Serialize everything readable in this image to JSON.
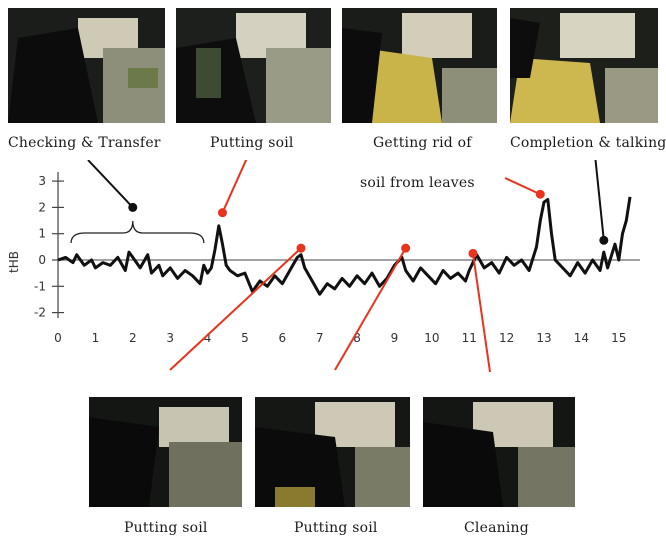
{
  "top_captions": [
    "Checking & Transfer",
    "Putting soil",
    "Getting rid of",
    "Completion & talking"
  ],
  "top_caption_line2": "soil from leaves",
  "bottom_captions": [
    "Putting soil",
    "Putting soil",
    "Cleaning"
  ],
  "chart_data": {
    "type": "line",
    "ylabel": "tHB",
    "xlabel": "",
    "xlim": [
      0,
      15.3
    ],
    "ylim": [
      -2,
      3
    ],
    "xticks": [
      "0",
      "1",
      "2",
      "3",
      "4",
      "5",
      "6",
      "7",
      "8",
      "9",
      "10",
      "11",
      "12",
      "13",
      "14",
      "15"
    ],
    "yticks": [
      "3",
      "2",
      "1",
      "0",
      "-1",
      "-2"
    ],
    "x": [
      0,
      0.2,
      0.4,
      0.5,
      0.7,
      0.9,
      1.0,
      1.2,
      1.4,
      1.6,
      1.8,
      1.9,
      2.0,
      2.2,
      2.4,
      2.5,
      2.7,
      2.8,
      3.0,
      3.2,
      3.4,
      3.6,
      3.8,
      3.9,
      4.0,
      4.1,
      4.2,
      4.3,
      4.4,
      4.5,
      4.6,
      4.8,
      5.0,
      5.2,
      5.4,
      5.6,
      5.8,
      6.0,
      6.2,
      6.4,
      6.5,
      6.6,
      6.8,
      7.0,
      7.2,
      7.4,
      7.6,
      7.8,
      8.0,
      8.2,
      8.4,
      8.6,
      8.8,
      9.0,
      9.2,
      9.3,
      9.5,
      9.7,
      9.9,
      10.1,
      10.3,
      10.5,
      10.7,
      10.9,
      11.0,
      11.2,
      11.4,
      11.6,
      11.8,
      12.0,
      12.2,
      12.4,
      12.6,
      12.8,
      12.9,
      13.0,
      13.1,
      13.2,
      13.3,
      13.5,
      13.7,
      13.9,
      14.1,
      14.3,
      14.5,
      14.6,
      14.7,
      14.9,
      15.0,
      15.1,
      15.2,
      15.3
    ],
    "y": [
      0.0,
      0.1,
      -0.1,
      0.2,
      -0.2,
      0.0,
      -0.3,
      -0.1,
      -0.2,
      0.1,
      -0.4,
      0.3,
      0.1,
      -0.3,
      0.2,
      -0.5,
      -0.2,
      -0.6,
      -0.3,
      -0.7,
      -0.4,
      -0.6,
      -0.9,
      -0.2,
      -0.5,
      -0.3,
      0.4,
      1.3,
      0.6,
      -0.2,
      -0.4,
      -0.6,
      -0.5,
      -1.2,
      -0.8,
      -1.0,
      -0.6,
      -0.9,
      -0.4,
      0.1,
      0.2,
      -0.3,
      -0.8,
      -1.3,
      -0.9,
      -1.1,
      -0.7,
      -1.0,
      -0.6,
      -0.9,
      -0.5,
      -1.0,
      -0.7,
      -0.2,
      0.1,
      -0.4,
      -0.8,
      -0.3,
      -0.6,
      -0.9,
      -0.4,
      -0.7,
      -0.5,
      -0.8,
      -0.4,
      0.2,
      -0.3,
      -0.1,
      -0.5,
      0.1,
      -0.2,
      0.0,
      -0.4,
      0.5,
      1.5,
      2.2,
      2.3,
      1.0,
      0.0,
      -0.3,
      -0.6,
      -0.1,
      -0.5,
      0.0,
      -0.4,
      0.3,
      -0.3,
      0.6,
      0.0,
      1.0,
      1.5,
      2.4
    ],
    "markers": [
      {
        "x": 2.0,
        "y": 2.0,
        "color": "#111111",
        "caption_index": 0
      },
      {
        "x": 4.4,
        "y": 1.8,
        "color": "#e8341c",
        "caption_index": 1
      },
      {
        "x": 6.5,
        "y": 0.45,
        "color": "#e8341c",
        "caption_index": 2
      },
      {
        "x": 9.3,
        "y": 0.45,
        "color": "#e8341c",
        "caption_index": 3
      },
      {
        "x": 11.1,
        "y": 0.25,
        "color": "#e8341c",
        "caption_index": 4
      },
      {
        "x": 12.9,
        "y": 2.5,
        "color": "#e8341c",
        "caption_index": 5
      },
      {
        "x": 14.6,
        "y": 0.75,
        "color": "#111111",
        "caption_index": 6
      }
    ],
    "brace_range": [
      0.35,
      3.9
    ]
  },
  "colors": {
    "line": "#111111",
    "accent": "#e8341c",
    "axis": "#444444"
  }
}
